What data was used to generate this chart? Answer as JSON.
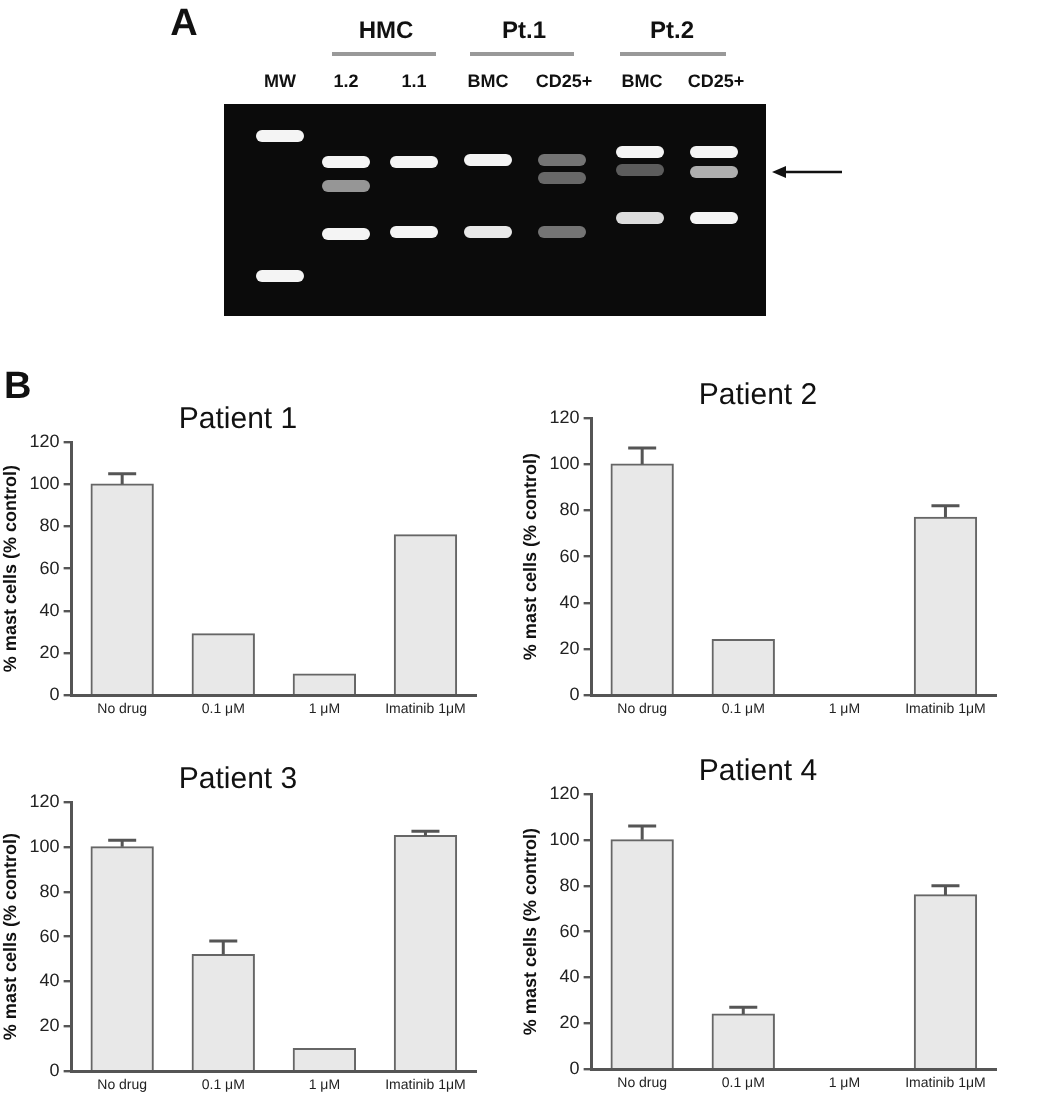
{
  "chart_data": [
    {
      "type": "other",
      "title": "A",
      "annotations": [
        "HMC",
        "Pt.1",
        "Pt.2",
        "MW",
        "1.2",
        "1.1",
        "BMC",
        "CD25+",
        "BMC",
        "CD25+"
      ]
    },
    {
      "type": "bar",
      "title": "Patient 1",
      "annotations": [
        "B"
      ],
      "ylabel": "% mast cells (% control)",
      "categories": [
        "No drug",
        "0.1 μM",
        "1 μM",
        "Imatinib 1μM"
      ],
      "values": [
        100,
        29,
        10,
        76
      ],
      "errors": [
        [
          100,
          105
        ],
        null,
        null,
        null
      ],
      "color": "#e8e8e8",
      "ylim": [
        0,
        120
      ],
      "yticks": [
        0,
        20,
        40,
        60,
        80,
        100,
        120
      ]
    },
    {
      "type": "bar",
      "title": "Patient 2",
      "ylabel": "% mast cells (% control)",
      "categories": [
        "No drug",
        "0.1 μM",
        "1 μM",
        "Imatinib 1μM"
      ],
      "values": [
        100,
        24,
        null,
        77
      ],
      "errors": [
        [
          100,
          107
        ],
        null,
        null,
        [
          77,
          82
        ]
      ],
      "color": "#e8e8e8",
      "ylim": [
        0,
        120
      ],
      "yticks": [
        0,
        20,
        40,
        60,
        80,
        100,
        120
      ]
    },
    {
      "type": "bar",
      "title": "Patient 3",
      "ylabel": "% mast cells (% control)",
      "categories": [
        "No drug",
        "0.1 μM",
        "1 μM",
        "Imatinib 1μM"
      ],
      "values": [
        100,
        52,
        10,
        105
      ],
      "errors": [
        [
          100,
          103
        ],
        [
          52,
          58
        ],
        null,
        [
          105,
          107
        ]
      ],
      "color": "#e8e8e8",
      "ylim": [
        0,
        120
      ],
      "yticks": [
        0,
        20,
        40,
        60,
        80,
        100,
        120
      ]
    },
    {
      "type": "bar",
      "title": "Patient 4",
      "ylabel": "% mast cells (% control)",
      "categories": [
        "No drug",
        "0.1 μM",
        "1 μM",
        "Imatinib 1μM"
      ],
      "values": [
        100,
        24,
        null,
        76
      ],
      "errors": [
        [
          100,
          106
        ],
        [
          24,
          27
        ],
        null,
        [
          76,
          80
        ]
      ],
      "color": "#e8e8e8",
      "ylim": [
        0,
        120
      ],
      "yticks": [
        0,
        20,
        40,
        60,
        80,
        100,
        120
      ]
    }
  ]
}
